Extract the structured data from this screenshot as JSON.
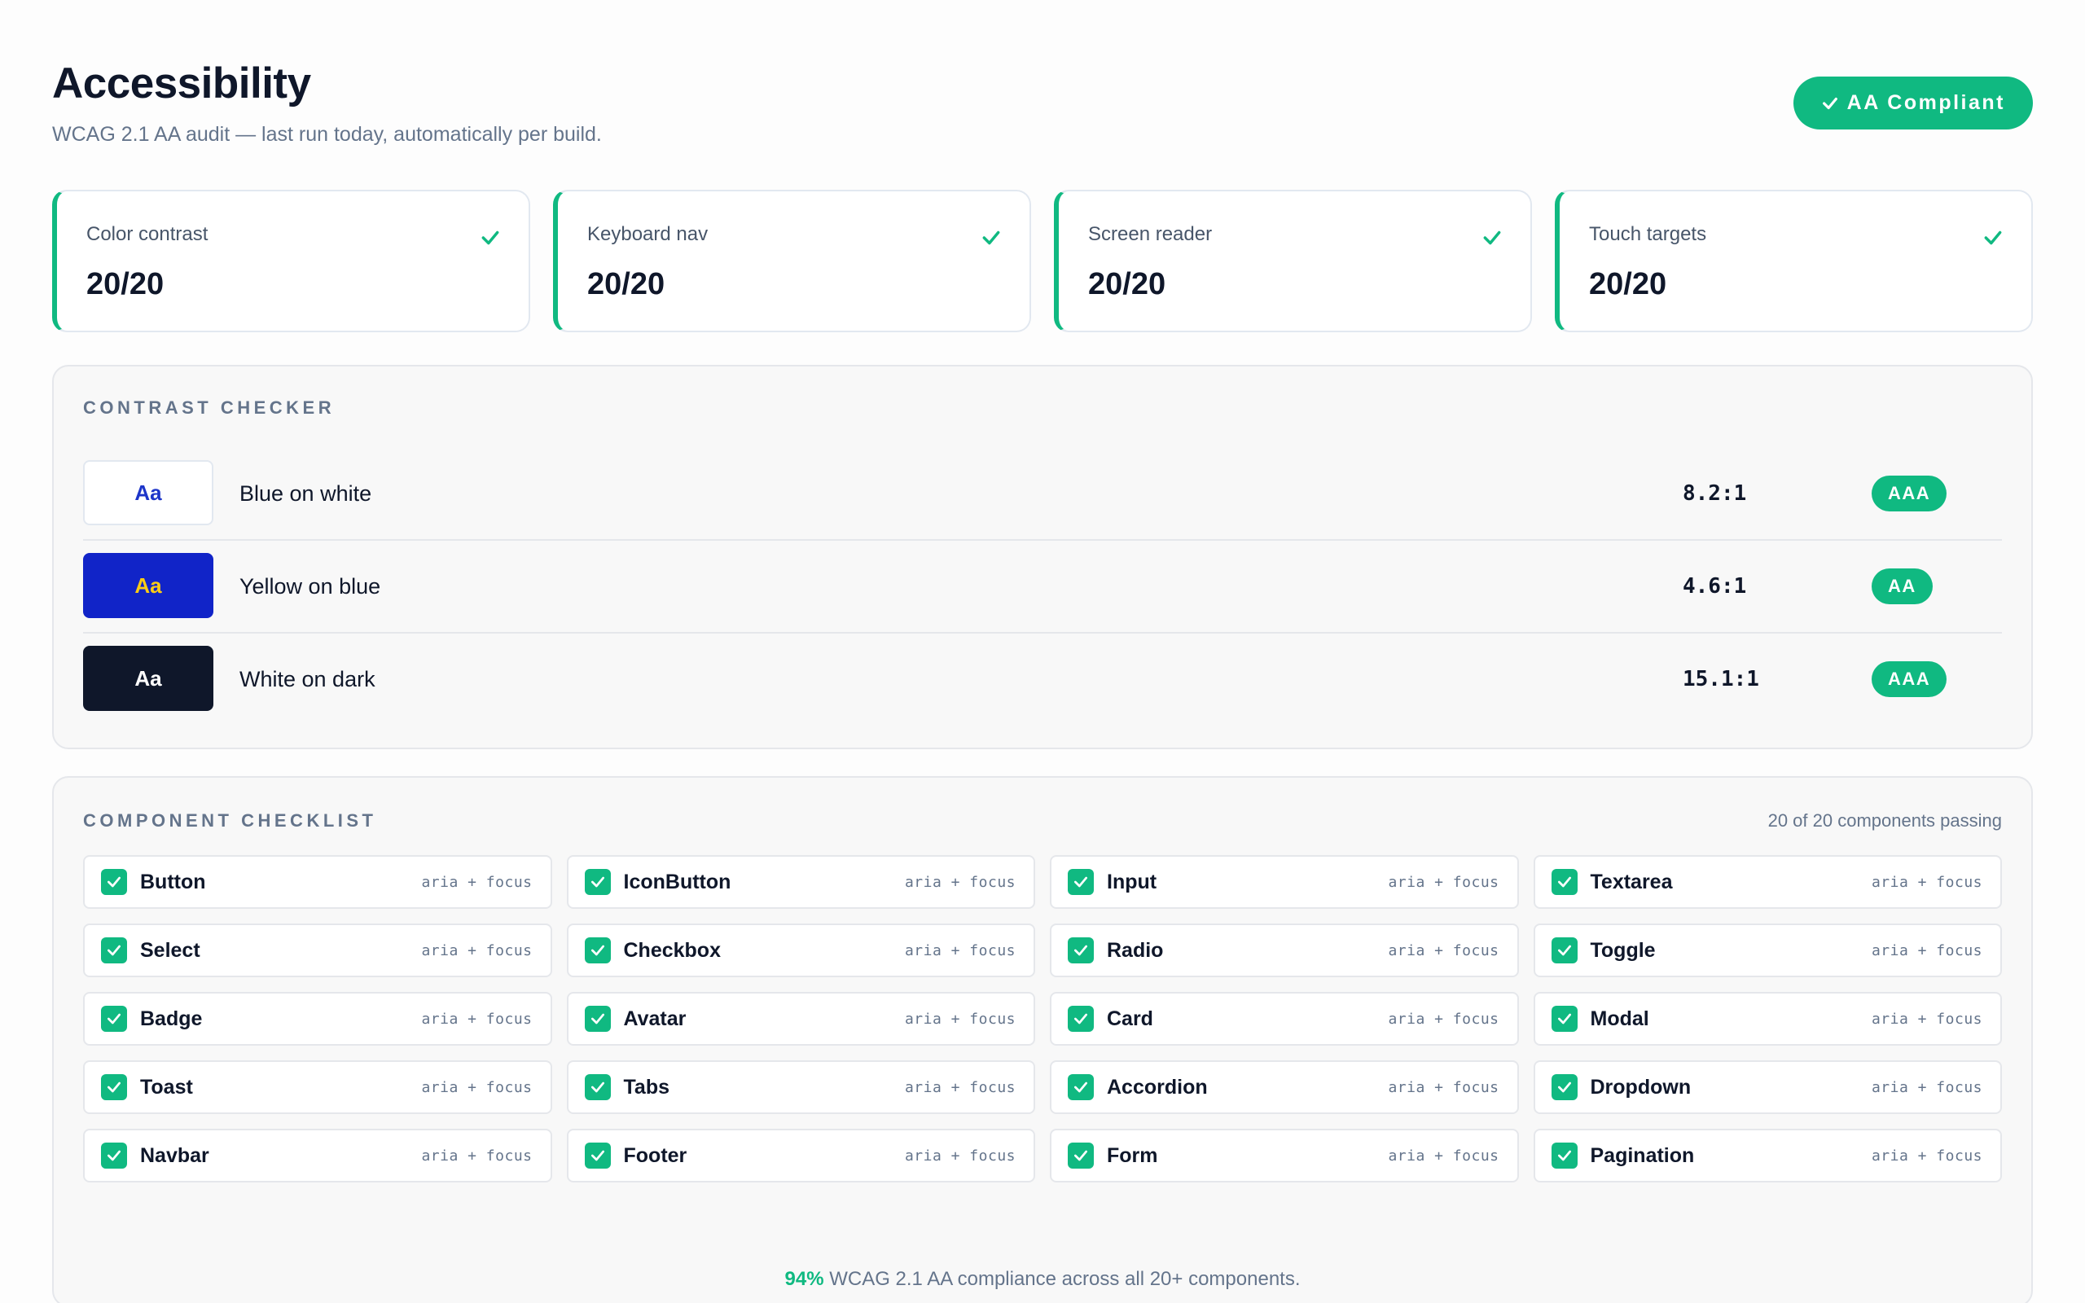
{
  "header": {
    "title": "Accessibility",
    "subtitle": "WCAG 2.1 AA audit — last run today, automatically per build.",
    "badge_label": "AA Compliant"
  },
  "stats": [
    {
      "label": "Color contrast",
      "value": "20/20"
    },
    {
      "label": "Keyboard nav",
      "value": "20/20"
    },
    {
      "label": "Screen reader",
      "value": "20/20"
    },
    {
      "label": "Touch targets",
      "value": "20/20"
    }
  ],
  "contrast": {
    "section_label": "CONTRAST CHECKER",
    "rows": [
      {
        "sample": "Aa",
        "name": "Blue on white",
        "ratio": "8.2:1",
        "level": "AAA",
        "fg": "#1d35c9",
        "bg": "#ffffff"
      },
      {
        "sample": "Aa",
        "name": "Yellow on blue",
        "ratio": "4.6:1",
        "level": "AA",
        "fg": "#facc15",
        "bg": "#1124c8"
      },
      {
        "sample": "Aa",
        "name": "White on dark",
        "ratio": "15.1:1",
        "level": "AAA",
        "fg": "#ffffff",
        "bg": "#0f172a"
      }
    ]
  },
  "components": {
    "section_label": "COMPONENT CHECKLIST",
    "passing_text": "20 of 20 components passing",
    "tag": "aria + focus",
    "items": [
      "Button",
      "IconButton",
      "Input",
      "Textarea",
      "Select",
      "Checkbox",
      "Radio",
      "Toggle",
      "Badge",
      "Avatar",
      "Card",
      "Modal",
      "Toast",
      "Tabs",
      "Accordion",
      "Dropdown",
      "Navbar",
      "Footer",
      "Form",
      "Pagination"
    ],
    "footer_pct": "94%",
    "footer_text": " WCAG 2.1 AA compliance across all 20+ components."
  },
  "colors": {
    "accent": "#10b981",
    "text": "#0f172a",
    "muted": "#64748b"
  },
  "icons": {
    "check": "check-icon",
    "checkbox": "checkbox-checked-icon"
  }
}
